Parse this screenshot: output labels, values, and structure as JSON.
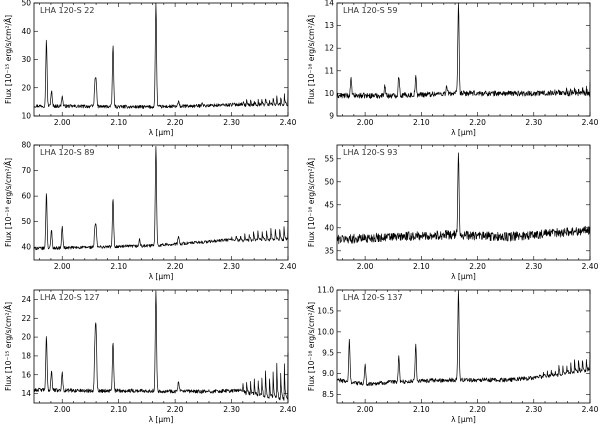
{
  "chart_data": [
    {
      "type": "line",
      "title": "LHA 120-S 22",
      "xlabel": "λ [μm]",
      "ylabel": "Flux [10⁻¹⁵ erg/s/cm²/Å]",
      "xlim": [
        1.95,
        2.4
      ],
      "ylim": [
        10,
        50
      ],
      "xticks": [
        "2.00",
        "2.10",
        "2.20",
        "2.30",
        "2.40"
      ],
      "yticks": [
        "10",
        "20",
        "30",
        "40",
        "50"
      ],
      "baseline": [
        [
          1.95,
          13.6
        ],
        [
          2.05,
          13.4
        ],
        [
          2.15,
          13.2
        ],
        [
          2.25,
          13.6
        ],
        [
          2.3,
          14.0
        ],
        [
          2.4,
          15.2
        ]
      ],
      "noise": 0.6,
      "lines": [
        {
          "x": 1.972,
          "peak": 37
        },
        {
          "x": 1.981,
          "peak": 19
        },
        {
          "x": 2.0,
          "peak": 17
        },
        {
          "x": 2.058,
          "peak": 21
        },
        {
          "x": 2.06,
          "peak": 22
        },
        {
          "x": 2.09,
          "peak": 35
        },
        {
          "x": 2.166,
          "peak": 50
        },
        {
          "x": 2.206,
          "peak": 15
        },
        {
          "x": 2.248,
          "peak": 15
        }
      ],
      "bandheads": {
        "start": 2.32,
        "end": 2.4,
        "count": 12,
        "height_start": 1.5,
        "height_end": 4.5
      }
    },
    {
      "type": "line",
      "title": "LHA 120-S 59",
      "xlabel": "λ [μm]",
      "ylabel": "Flux [10⁻¹⁶ erg/s/cm²/Å]",
      "xlim": [
        1.95,
        2.4
      ],
      "ylim": [
        9,
        14
      ],
      "xticks": [
        "2.00",
        "2.10",
        "2.20",
        "2.30",
        "2.40"
      ],
      "yticks": [
        "9",
        "10",
        "11",
        "12",
        "13",
        "14"
      ],
      "baseline": [
        [
          1.95,
          9.9
        ],
        [
          2.05,
          9.9
        ],
        [
          2.15,
          10.0
        ],
        [
          2.25,
          10.0
        ],
        [
          2.3,
          10.0
        ],
        [
          2.4,
          10.1
        ]
      ],
      "noise": 0.12,
      "lines": [
        {
          "x": 1.975,
          "peak": 10.6
        },
        {
          "x": 2.035,
          "peak": 10.4
        },
        {
          "x": 2.06,
          "peak": 10.8
        },
        {
          "x": 2.09,
          "peak": 10.7
        },
        {
          "x": 2.166,
          "peak": 14.0
        },
        {
          "x": 2.145,
          "peak": 10.3
        }
      ],
      "bandheads": {
        "start": 2.33,
        "end": 2.4,
        "count": 10,
        "height_start": 0.1,
        "height_end": 0.5
      }
    },
    {
      "type": "line",
      "title": "LHA 120-S 89",
      "xlabel": "λ [μm]",
      "ylabel": "Flux [10⁻¹⁶ erg/s/cm²/Å]",
      "xlim": [
        1.95,
        2.4
      ],
      "ylim": [
        35,
        80
      ],
      "xticks": [
        "2.00",
        "2.10",
        "2.20",
        "2.30",
        "2.40"
      ],
      "yticks": [
        "40",
        "50",
        "60",
        "70",
        "80"
      ],
      "baseline": [
        [
          1.95,
          39.5
        ],
        [
          2.05,
          40.0
        ],
        [
          2.15,
          40.5
        ],
        [
          2.25,
          42.0
        ],
        [
          2.3,
          43.0
        ],
        [
          2.4,
          45.0
        ]
      ],
      "noise": 0.6,
      "lines": [
        {
          "x": 1.972,
          "peak": 61
        },
        {
          "x": 1.981,
          "peak": 47
        },
        {
          "x": 2.0,
          "peak": 48
        },
        {
          "x": 2.058,
          "peak": 47
        },
        {
          "x": 2.06,
          "peak": 47
        },
        {
          "x": 2.09,
          "peak": 59
        },
        {
          "x": 2.137,
          "peak": 43
        },
        {
          "x": 2.166,
          "peak": 80
        },
        {
          "x": 2.206,
          "peak": 44
        }
      ],
      "bandheads": {
        "start": 2.3,
        "end": 2.4,
        "count": 13,
        "height_start": 2,
        "height_end": 8
      }
    },
    {
      "type": "line",
      "title": "LHA 120-S 93",
      "xlabel": "λ [μm]",
      "ylabel": "Flux [10⁻¹⁶ erg/s/cm²/Å]",
      "xlim": [
        1.95,
        2.4
      ],
      "ylim": [
        33,
        58
      ],
      "xticks": [
        "2.00",
        "2.10",
        "2.20",
        "2.30",
        "2.40"
      ],
      "yticks": [
        "35",
        "40",
        "45",
        "50",
        "55"
      ],
      "baseline": [
        [
          1.95,
          37.5
        ],
        [
          2.05,
          38.0
        ],
        [
          2.15,
          38.5
        ],
        [
          2.25,
          38.0
        ],
        [
          2.3,
          38.5
        ],
        [
          2.4,
          39.5
        ]
      ],
      "noise": 1.0,
      "lines": [
        {
          "x": 2.166,
          "peak": 57
        }
      ],
      "bandheads": {
        "start": 2.33,
        "end": 2.4,
        "count": 0,
        "height_start": 0,
        "height_end": 0
      }
    },
    {
      "type": "line",
      "title": "LHA 120-S 127",
      "xlabel": "λ [μm]",
      "ylabel": "Flux [10⁻¹⁵ erg/s/cm²/Å]",
      "xlim": [
        1.95,
        2.4
      ],
      "ylim": [
        13,
        25
      ],
      "xticks": [
        "2.00",
        "2.10",
        "2.20",
        "2.30",
        "2.40"
      ],
      "yticks": [
        "14",
        "16",
        "18",
        "20",
        "22",
        "24"
      ],
      "baseline": [
        [
          1.95,
          14.4
        ],
        [
          2.05,
          14.3
        ],
        [
          2.15,
          14.3
        ],
        [
          2.25,
          14.2
        ],
        [
          2.3,
          14.3
        ],
        [
          2.4,
          14.6
        ]
      ],
      "noise": 0.2,
      "lines": [
        {
          "x": 1.972,
          "peak": 20
        },
        {
          "x": 1.981,
          "peak": 16.5
        },
        {
          "x": 2.0,
          "peak": 16.2
        },
        {
          "x": 2.058,
          "peak": 19
        },
        {
          "x": 2.06,
          "peak": 20.5
        },
        {
          "x": 2.09,
          "peak": 19.5
        },
        {
          "x": 2.166,
          "peak": 25
        },
        {
          "x": 2.206,
          "peak": 15.2
        }
      ],
      "bandheads": {
        "start": 2.32,
        "end": 2.4,
        "count": 12,
        "height_start": 1.0,
        "height_end": 5.0
      }
    },
    {
      "type": "line",
      "title": "LHA 120-S 137",
      "xlabel": "λ [μm]",
      "ylabel": "Flux [10⁻¹⁶ erg/s/cm²/Å]",
      "xlim": [
        1.95,
        2.4
      ],
      "ylim": [
        8.3,
        11.0
      ],
      "xticks": [
        "2.00",
        "2.10",
        "2.20",
        "2.30",
        "2.40"
      ],
      "yticks": [
        "8.5",
        "9.0",
        "9.5",
        "10.0",
        "10.5",
        "11.0"
      ],
      "baseline": [
        [
          1.95,
          8.85
        ],
        [
          2.0,
          8.75
        ],
        [
          2.05,
          8.8
        ],
        [
          2.15,
          8.85
        ],
        [
          2.25,
          8.85
        ],
        [
          2.3,
          8.9
        ],
        [
          2.4,
          9.2
        ]
      ],
      "noise": 0.05,
      "lines": [
        {
          "x": 1.972,
          "peak": 9.8
        },
        {
          "x": 2.0,
          "peak": 9.2
        },
        {
          "x": 2.06,
          "peak": 9.4
        },
        {
          "x": 2.09,
          "peak": 9.7
        },
        {
          "x": 2.166,
          "peak": 11.0
        }
      ],
      "bandheads": {
        "start": 2.31,
        "end": 2.4,
        "count": 13,
        "height_start": 0.1,
        "height_end": 0.45
      }
    }
  ]
}
